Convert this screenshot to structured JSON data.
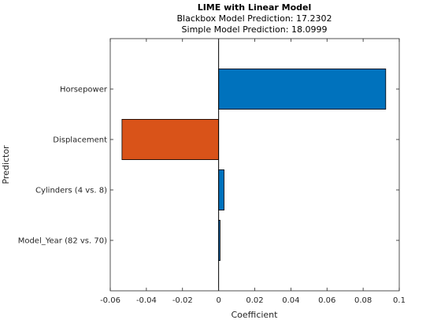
{
  "chart_data": {
    "type": "bar",
    "orientation": "horizontal",
    "title": "LIME with Linear Model",
    "subtitle_lines": [
      "Blackbox Model Prediction: 17.2302",
      "Simple Model Prediction: 18.0999"
    ],
    "xlabel": "Coefficient",
    "ylabel": "Predictor",
    "xlim": [
      -0.06,
      0.1
    ],
    "xticks": [
      -0.06,
      -0.04,
      -0.02,
      0,
      0.02,
      0.04,
      0.06,
      0.08,
      0.1
    ],
    "xtick_labels": [
      "-0.06",
      "-0.04",
      "-0.02",
      "0",
      "0.02",
      "0.04",
      "0.06",
      "0.08",
      "0.1"
    ],
    "categories": [
      "Horsepower",
      "Displacement",
      "Cylinders (4 vs. 8)",
      "Model_Year (82 vs. 70)"
    ],
    "values": [
      0.0925,
      -0.0535,
      0.003,
      0.0008
    ],
    "positive_color": "#0072BD",
    "negative_color": "#D95319",
    "grid": false,
    "legend": "none"
  }
}
